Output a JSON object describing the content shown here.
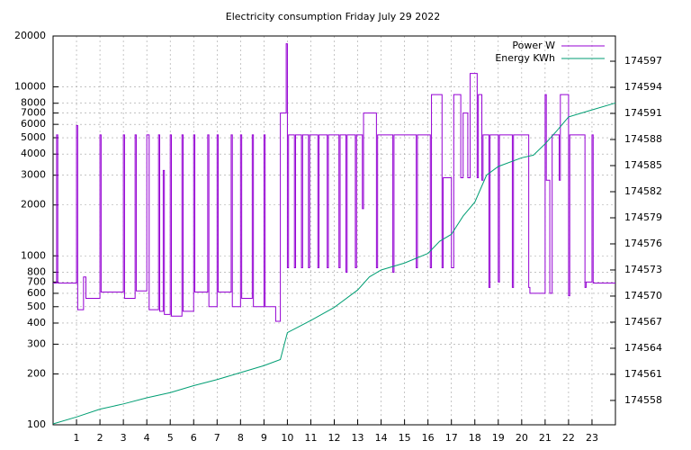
{
  "chart_data": {
    "type": "line",
    "title": "Electricity consumption Friday July 29 2022",
    "xlim": [
      0,
      24
    ],
    "xticks": [
      1,
      2,
      3,
      4,
      5,
      6,
      7,
      8,
      9,
      10,
      11,
      12,
      13,
      14,
      15,
      16,
      17,
      18,
      19,
      20,
      21,
      22,
      23
    ],
    "ylim": [
      100,
      20000
    ],
    "yticks": [
      100,
      200,
      300,
      400,
      500,
      600,
      700,
      800,
      1000,
      2000,
      3000,
      4000,
      5000,
      6000,
      7000,
      8000,
      10000,
      20000
    ],
    "ylog": true,
    "y2lim": [
      174555.2,
      174599.9
    ],
    "y2ticks": [
      174558,
      174561,
      174564,
      174567,
      174570,
      174573,
      174576,
      174579,
      174582,
      174585,
      174588,
      174591,
      174594,
      174597
    ],
    "grid": true,
    "legend": "top-right",
    "series": [
      {
        "name": "Power W",
        "color": "#9400d3",
        "step": true,
        "x": [
          0,
          0.15,
          0.2,
          1,
          1.05,
          1.3,
          1.4,
          2,
          2.05,
          3,
          3.05,
          3.5,
          3.55,
          4,
          4.1,
          4.5,
          4.55,
          4.7,
          4.75,
          5,
          5.05,
          5.5,
          5.55,
          6,
          6.05,
          6.6,
          6.65,
          7,
          7.05,
          7.6,
          7.65,
          8,
          8.05,
          8.5,
          8.55,
          9,
          9.05,
          9.5,
          9.7,
          9.95,
          10,
          10.05,
          10.3,
          10.35,
          10.6,
          10.65,
          10.9,
          10.95,
          11.3,
          11.35,
          11.7,
          11.75,
          12.2,
          12.25,
          12.5,
          12.55,
          12.9,
          12.95,
          13.2,
          13.25,
          13.8,
          13.85,
          14.5,
          14.55,
          15.5,
          15.55,
          16.1,
          16.15,
          16.6,
          16.65,
          17,
          17.1,
          17.4,
          17.5,
          17.7,
          17.8,
          18.1,
          18.15,
          18.3,
          18.35,
          18.6,
          18.65,
          19,
          19.05,
          19.6,
          19.65,
          20.3,
          20.35,
          21,
          21.05,
          21.2,
          21.3,
          21.6,
          21.65,
          22,
          22.05,
          22.7,
          22.75,
          23,
          23.05,
          24
        ],
        "values": [
          690,
          5200,
          690,
          5900,
          480,
          750,
          560,
          5200,
          610,
          5200,
          560,
          5200,
          620,
          5200,
          480,
          5200,
          470,
          3200,
          450,
          5200,
          440,
          5200,
          470,
          5200,
          610,
          5200,
          500,
          5200,
          610,
          5200,
          500,
          5200,
          560,
          5200,
          500,
          5200,
          500,
          410,
          7000,
          18000,
          850,
          5200,
          850,
          5200,
          850,
          5200,
          850,
          5200,
          850,
          5200,
          850,
          5200,
          850,
          5200,
          800,
          5200,
          850,
          5200,
          1900,
          7000,
          850,
          5200,
          800,
          5200,
          850,
          5200,
          850,
          9000,
          850,
          2900,
          850,
          9000,
          2900,
          7000,
          2900,
          12000,
          2900,
          9000,
          2800,
          5200,
          650,
          5200,
          700,
          5200,
          650,
          5200,
          650,
          600,
          9000,
          2800,
          600,
          5200,
          2800,
          9000,
          580,
          5200,
          650,
          700,
          5200,
          690,
          690
        ]
      },
      {
        "name": "Energy KWh",
        "color": "#009e73",
        "axis": "y2",
        "x": [
          0,
          1,
          2,
          3,
          4,
          5,
          6,
          7,
          8,
          9,
          9.7,
          10,
          11,
          12,
          13,
          13.5,
          14,
          15,
          16,
          16.5,
          17,
          17.5,
          18,
          18.5,
          19,
          20,
          20.5,
          21,
          21.5,
          22,
          23,
          24
        ],
        "values": [
          174555.3,
          174556.1,
          174557.0,
          174557.6,
          174558.3,
          174558.9,
          174559.7,
          174560.4,
          174561.2,
          174562.0,
          174562.7,
          174565.8,
          174567.2,
          174568.7,
          174570.7,
          174572.2,
          174573.0,
          174573.8,
          174574.9,
          174576.3,
          174577.1,
          174579.2,
          174580.8,
          174583.9,
          174584.9,
          174585.9,
          174586.2,
          174587.5,
          174589.0,
          174590.6,
          174591.4,
          174592.2
        ]
      }
    ]
  }
}
